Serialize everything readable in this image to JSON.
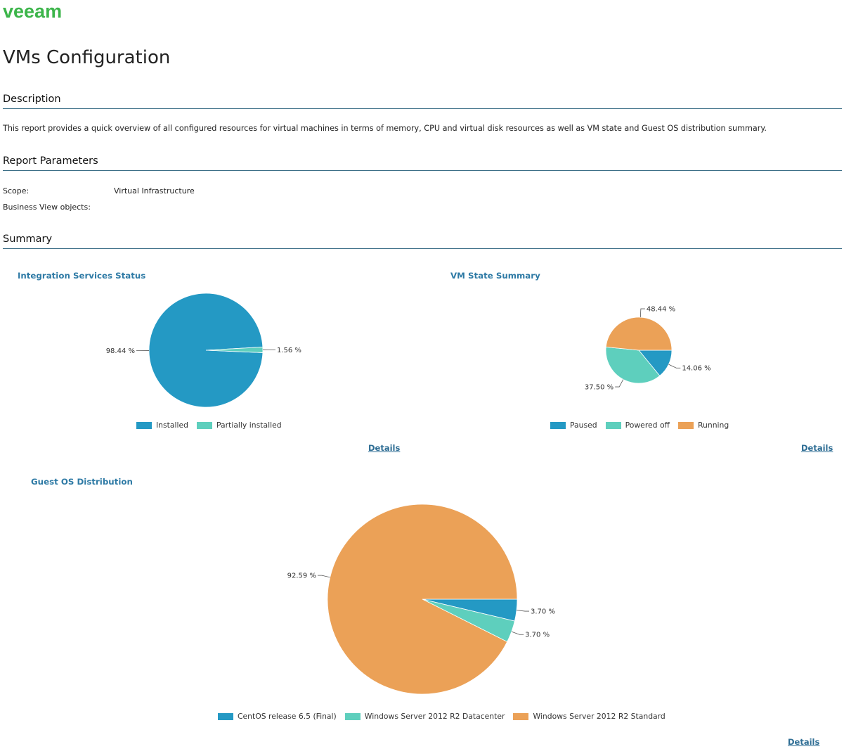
{
  "logo": {
    "text": "veeam"
  },
  "page_title": "VMs Configuration",
  "sections": {
    "description": "Description",
    "report_parameters": "Report Parameters",
    "summary": "Summary"
  },
  "description_text": "This report provides a quick overview of all configured resources for virtual machines in terms of memory, CPU and virtual disk resources as well as VM state and Guest OS distribution summary.",
  "parameters": {
    "scope_label": "Scope:",
    "scope_value": "Virtual Infrastructure",
    "bv_label": "Business View objects:",
    "bv_value": ""
  },
  "details_label": "Details",
  "colors": {
    "blue": "#2499c4",
    "teal": "#5ecfbd",
    "orange": "#eba157",
    "link": "#2e6d94",
    "rule": "#3a6d86",
    "logo": "#3cb54a"
  },
  "chart_data": [
    {
      "type": "pie",
      "title": "Integration Services Status",
      "categories": [
        "Installed",
        "Partially installed"
      ],
      "values": [
        98.44,
        1.56
      ],
      "labels": [
        "98.44 %",
        "1.56 %"
      ],
      "colors": [
        "#2499c4",
        "#5ecfbd"
      ],
      "legend": "bottom"
    },
    {
      "type": "pie",
      "title": "VM State Summary",
      "categories": [
        "Paused",
        "Powered off",
        "Running"
      ],
      "values": [
        14.06,
        37.5,
        48.44
      ],
      "labels": [
        "14.06 %",
        "37.50 %",
        "48.44 %"
      ],
      "colors": [
        "#2499c4",
        "#5ecfbd",
        "#eba157"
      ],
      "legend": "bottom"
    },
    {
      "type": "pie",
      "title": "Guest OS Distribution",
      "categories": [
        "CentOS release 6.5 (Final)",
        "Windows Server 2012 R2 Datacenter",
        "Windows Server 2012 R2 Standard"
      ],
      "values": [
        3.7,
        3.7,
        92.59
      ],
      "labels": [
        "3.70 %",
        "3.70 %",
        "92.59 %"
      ],
      "colors": [
        "#2499c4",
        "#5ecfbd",
        "#eba157"
      ],
      "legend": "bottom"
    }
  ]
}
